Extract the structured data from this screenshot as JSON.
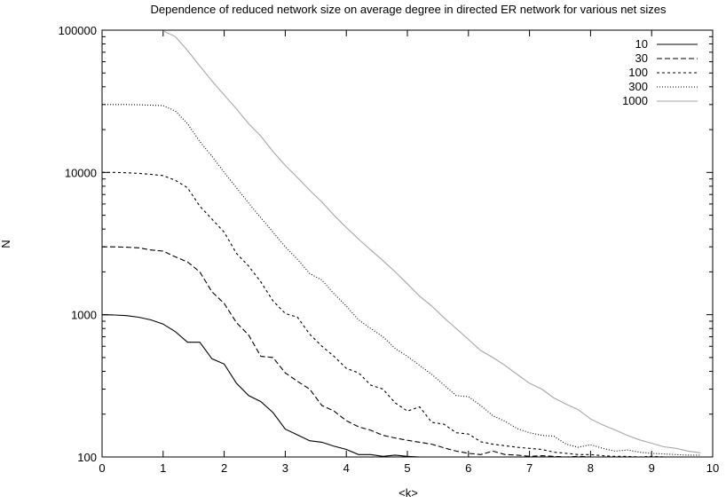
{
  "chart_data": {
    "type": "line",
    "title": "Dependence of reduced network size on average degree in directed ER network for various net sizes",
    "xlabel": "<k>",
    "ylabel": "N",
    "xlim": [
      0,
      10
    ],
    "ylim": [
      100,
      100000
    ],
    "y_scale": "log",
    "grid": false,
    "legend": "top-right",
    "x_ticks": [
      0,
      1,
      2,
      3,
      4,
      5,
      6,
      7,
      8,
      9,
      10
    ],
    "y_ticks": [
      {
        "value": 100,
        "label": "100"
      },
      {
        "value": 1000,
        "label": "1000"
      },
      {
        "value": 10000,
        "label": "10000"
      },
      {
        "value": 100000,
        "label": "100000"
      }
    ],
    "series": [
      {
        "name": "10",
        "color": "#000000",
        "dash": "solid",
        "points": [
          [
            0,
            1000
          ],
          [
            0.2,
            995
          ],
          [
            0.4,
            985
          ],
          [
            0.6,
            960
          ],
          [
            0.8,
            920
          ],
          [
            1.0,
            860
          ],
          [
            1.2,
            760
          ],
          [
            1.4,
            640
          ],
          [
            1.6,
            640
          ],
          [
            1.8,
            490
          ],
          [
            2.0,
            450
          ],
          [
            2.2,
            330
          ],
          [
            2.4,
            270
          ],
          [
            2.6,
            245
          ],
          [
            2.8,
            205
          ],
          [
            3.0,
            157
          ],
          [
            3.2,
            143
          ],
          [
            3.4,
            130
          ],
          [
            3.6,
            127
          ],
          [
            3.8,
            119
          ],
          [
            4.0,
            113
          ],
          [
            4.2,
            104
          ],
          [
            4.4,
            104
          ],
          [
            4.6,
            101
          ],
          [
            4.8,
            103
          ],
          [
            5.0,
            101
          ],
          [
            5.2,
            100
          ]
        ]
      },
      {
        "name": "30",
        "color": "#000000",
        "dash": "6,3",
        "points": [
          [
            0,
            3000
          ],
          [
            0.2,
            3000
          ],
          [
            0.4,
            2980
          ],
          [
            0.6,
            2950
          ],
          [
            0.8,
            2850
          ],
          [
            1.0,
            2800
          ],
          [
            1.2,
            2550
          ],
          [
            1.4,
            2350
          ],
          [
            1.6,
            2000
          ],
          [
            1.8,
            1450
          ],
          [
            2.0,
            1200
          ],
          [
            2.2,
            880
          ],
          [
            2.4,
            720
          ],
          [
            2.6,
            510
          ],
          [
            2.8,
            500
          ],
          [
            3.0,
            390
          ],
          [
            3.2,
            340
          ],
          [
            3.4,
            300
          ],
          [
            3.6,
            230
          ],
          [
            3.8,
            210
          ],
          [
            4.0,
            180
          ],
          [
            4.2,
            163
          ],
          [
            4.4,
            154
          ],
          [
            4.6,
            142
          ],
          [
            4.8,
            136
          ],
          [
            5.0,
            131
          ],
          [
            5.2,
            127
          ],
          [
            5.4,
            123
          ],
          [
            5.6,
            116
          ],
          [
            5.8,
            110
          ],
          [
            6.0,
            106
          ],
          [
            6.2,
            104
          ],
          [
            6.4,
            110
          ],
          [
            6.6,
            104
          ],
          [
            6.8,
            103
          ],
          [
            7.0,
            101
          ],
          [
            7.2,
            102
          ],
          [
            7.4,
            101
          ],
          [
            7.6,
            100
          ],
          [
            7.8,
            101
          ],
          [
            8.0,
            100
          ]
        ]
      },
      {
        "name": "100",
        "color": "#000000",
        "dash": "3,3",
        "points": [
          [
            0,
            10000
          ],
          [
            0.2,
            10000
          ],
          [
            0.4,
            9950
          ],
          [
            0.6,
            9850
          ],
          [
            0.8,
            9700
          ],
          [
            1.0,
            9500
          ],
          [
            1.2,
            8800
          ],
          [
            1.4,
            7800
          ],
          [
            1.6,
            5800
          ],
          [
            1.8,
            4700
          ],
          [
            2.0,
            3800
          ],
          [
            2.2,
            2700
          ],
          [
            2.4,
            2200
          ],
          [
            2.6,
            1700
          ],
          [
            2.8,
            1250
          ],
          [
            3.0,
            1020
          ],
          [
            3.2,
            960
          ],
          [
            3.4,
            730
          ],
          [
            3.6,
            600
          ],
          [
            3.8,
            510
          ],
          [
            4.0,
            420
          ],
          [
            4.2,
            390
          ],
          [
            4.4,
            320
          ],
          [
            4.6,
            300
          ],
          [
            4.8,
            240
          ],
          [
            5.0,
            210
          ],
          [
            5.2,
            225
          ],
          [
            5.4,
            175
          ],
          [
            5.6,
            170
          ],
          [
            5.8,
            148
          ],
          [
            6.0,
            145
          ],
          [
            6.2,
            128
          ],
          [
            6.4,
            123
          ],
          [
            6.6,
            120
          ],
          [
            6.8,
            117
          ],
          [
            7.0,
            115
          ],
          [
            7.2,
            113
          ],
          [
            7.4,
            108
          ],
          [
            7.6,
            106
          ],
          [
            7.8,
            104
          ],
          [
            8.0,
            104
          ],
          [
            8.2,
            102
          ],
          [
            8.4,
            101
          ],
          [
            8.6,
            101
          ],
          [
            8.8,
            100
          ],
          [
            9.0,
            101
          ],
          [
            9.2,
            100
          ],
          [
            9.4,
            100
          ],
          [
            9.6,
            100
          ],
          [
            9.8,
            100
          ]
        ]
      },
      {
        "name": "300",
        "color": "#000000",
        "dash": "1,2",
        "points": [
          [
            0,
            30000
          ],
          [
            0.2,
            30000
          ],
          [
            0.4,
            30000
          ],
          [
            0.6,
            29900
          ],
          [
            0.8,
            29700
          ],
          [
            1.0,
            29500
          ],
          [
            1.2,
            27000
          ],
          [
            1.4,
            22000
          ],
          [
            1.6,
            16500
          ],
          [
            1.8,
            13000
          ],
          [
            2.0,
            10000
          ],
          [
            2.2,
            7800
          ],
          [
            2.4,
            6100
          ],
          [
            2.6,
            4800
          ],
          [
            2.8,
            3800
          ],
          [
            3.0,
            3000
          ],
          [
            3.2,
            2450
          ],
          [
            3.4,
            1950
          ],
          [
            3.6,
            1750
          ],
          [
            3.8,
            1400
          ],
          [
            4.0,
            1150
          ],
          [
            4.2,
            920
          ],
          [
            4.4,
            800
          ],
          [
            4.6,
            700
          ],
          [
            4.8,
            580
          ],
          [
            5.0,
            510
          ],
          [
            5.2,
            440
          ],
          [
            5.4,
            380
          ],
          [
            5.6,
            320
          ],
          [
            5.8,
            270
          ],
          [
            6.0,
            265
          ],
          [
            6.2,
            230
          ],
          [
            6.4,
            195
          ],
          [
            6.6,
            178
          ],
          [
            6.8,
            158
          ],
          [
            7.0,
            148
          ],
          [
            7.2,
            142
          ],
          [
            7.4,
            140
          ],
          [
            7.6,
            123
          ],
          [
            7.8,
            117
          ],
          [
            8.0,
            122
          ],
          [
            8.2,
            115
          ],
          [
            8.4,
            110
          ],
          [
            8.6,
            112
          ],
          [
            8.8,
            108
          ],
          [
            9.0,
            106
          ],
          [
            9.2,
            105
          ],
          [
            9.4,
            104
          ],
          [
            9.6,
            103
          ],
          [
            9.8,
            103
          ]
        ]
      },
      {
        "name": "1000",
        "color": "#a6a6a6",
        "dash": "solid",
        "points": [
          [
            1.0,
            99000
          ],
          [
            1.2,
            90000
          ],
          [
            1.4,
            72000
          ],
          [
            1.6,
            56000
          ],
          [
            1.8,
            44000
          ],
          [
            2.0,
            35000
          ],
          [
            2.2,
            28000
          ],
          [
            2.4,
            22000
          ],
          [
            2.6,
            18000
          ],
          [
            2.8,
            14000
          ],
          [
            3.0,
            11200
          ],
          [
            3.2,
            9200
          ],
          [
            3.4,
            7500
          ],
          [
            3.6,
            6200
          ],
          [
            3.8,
            5000
          ],
          [
            4.0,
            4100
          ],
          [
            4.2,
            3400
          ],
          [
            4.4,
            2850
          ],
          [
            4.6,
            2400
          ],
          [
            4.8,
            2000
          ],
          [
            5.0,
            1650
          ],
          [
            5.2,
            1350
          ],
          [
            5.4,
            1150
          ],
          [
            5.6,
            950
          ],
          [
            5.8,
            800
          ],
          [
            6.0,
            670
          ],
          [
            6.2,
            560
          ],
          [
            6.4,
            500
          ],
          [
            6.6,
            440
          ],
          [
            6.8,
            380
          ],
          [
            7.0,
            330
          ],
          [
            7.2,
            300
          ],
          [
            7.4,
            260
          ],
          [
            7.6,
            235
          ],
          [
            7.8,
            215
          ],
          [
            8.0,
            185
          ],
          [
            8.2,
            168
          ],
          [
            8.4,
            155
          ],
          [
            8.6,
            142
          ],
          [
            8.8,
            132
          ],
          [
            9.0,
            125
          ],
          [
            9.2,
            118
          ],
          [
            9.4,
            115
          ],
          [
            9.6,
            110
          ],
          [
            9.8,
            107
          ]
        ]
      }
    ]
  }
}
